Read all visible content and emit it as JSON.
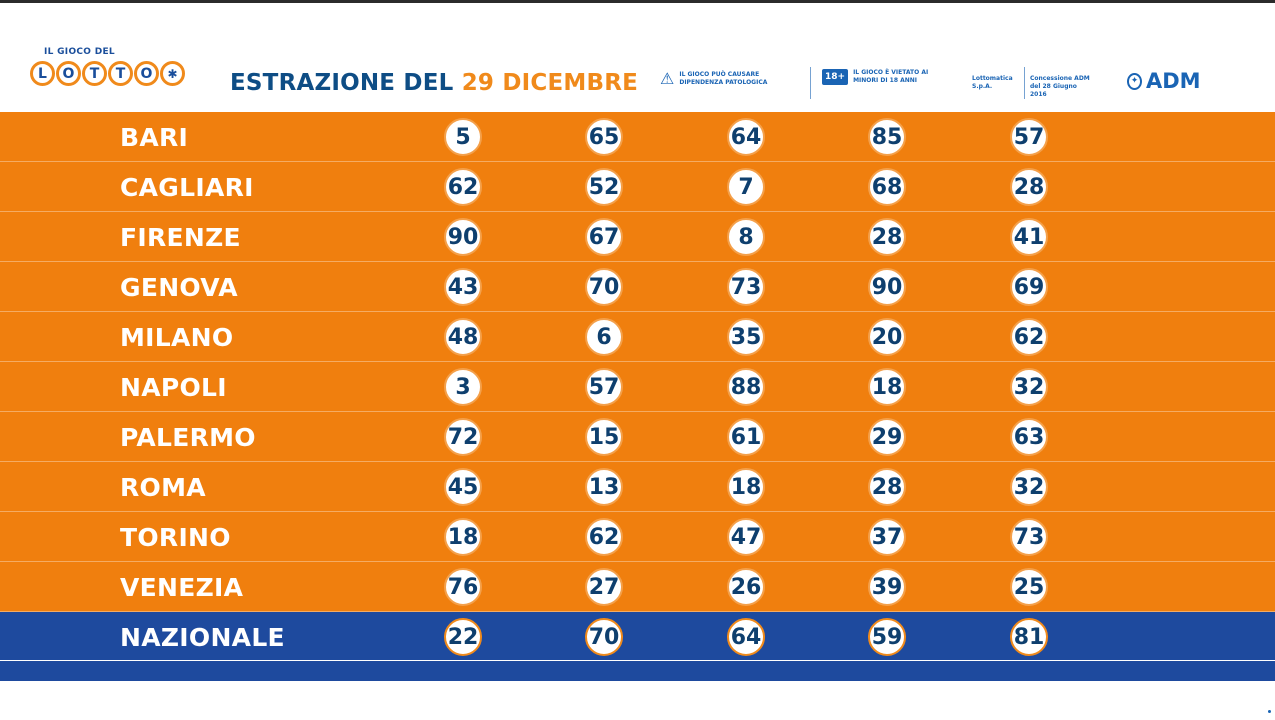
{
  "header": {
    "logo_top": "IL GIOCO DEL",
    "logo_letters": [
      "L",
      "O",
      "T",
      "T",
      "O"
    ],
    "title_prefix": "ESTRAZIONE DEL",
    "title_date": "29 DICEMBRE",
    "warning_1": "IL GIOCO PUÒ CAUSARE DIPENDENZA PATOLOGICA",
    "warning_2_badge": "18+",
    "warning_2": "IL GIOCO È VIETATO AI MINORI DI 18 ANNI",
    "operator": "Lottomatica S.p.A.",
    "concession": "Concessione ADM del 28 Giugno 2016",
    "adm": "ADM"
  },
  "rows": [
    {
      "city": "BARI",
      "numbers": [
        "5",
        "65",
        "64",
        "85",
        "57"
      ]
    },
    {
      "city": "CAGLIARI",
      "numbers": [
        "62",
        "52",
        "7",
        "68",
        "28"
      ]
    },
    {
      "city": "FIRENZE",
      "numbers": [
        "90",
        "67",
        "8",
        "28",
        "41"
      ]
    },
    {
      "city": "GENOVA",
      "numbers": [
        "43",
        "70",
        "73",
        "90",
        "69"
      ]
    },
    {
      "city": "MILANO",
      "numbers": [
        "48",
        "6",
        "35",
        "20",
        "62"
      ]
    },
    {
      "city": "NAPOLI",
      "numbers": [
        "3",
        "57",
        "88",
        "18",
        "32"
      ]
    },
    {
      "city": "PALERMO",
      "numbers": [
        "72",
        "15",
        "61",
        "29",
        "63"
      ]
    },
    {
      "city": "ROMA",
      "numbers": [
        "45",
        "13",
        "18",
        "28",
        "32"
      ]
    },
    {
      "city": "TORINO",
      "numbers": [
        "18",
        "62",
        "47",
        "37",
        "73"
      ]
    },
    {
      "city": "VENEZIA",
      "numbers": [
        "76",
        "27",
        "26",
        "39",
        "25"
      ]
    },
    {
      "city": "NAZIONALE",
      "numbers": [
        "22",
        "70",
        "64",
        "59",
        "81"
      ]
    }
  ],
  "colors": {
    "orange": "#f07f0e",
    "blue": "#1e4a9e",
    "title_blue": "#0e4d85"
  }
}
